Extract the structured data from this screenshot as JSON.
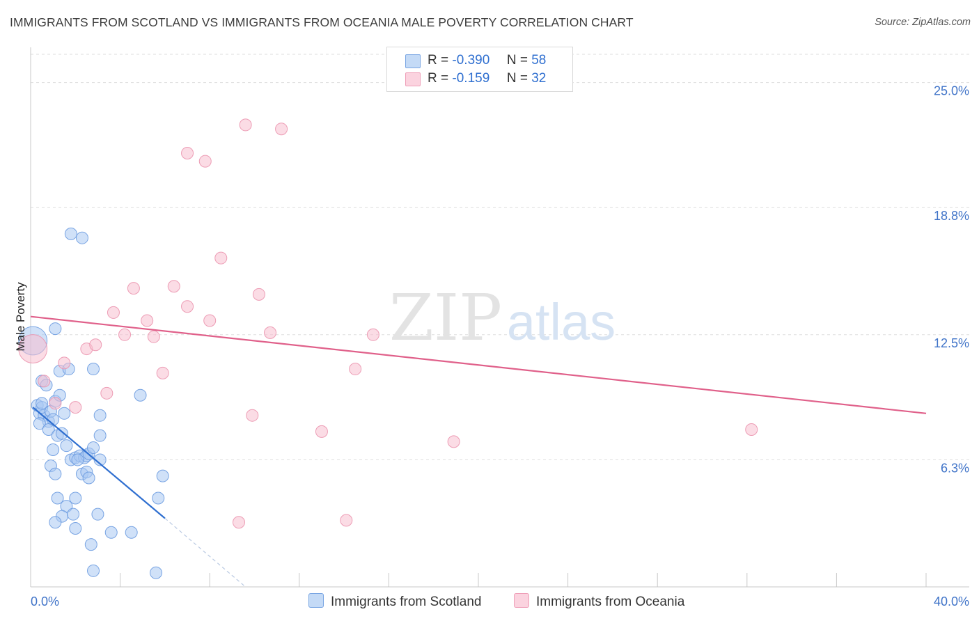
{
  "header": {
    "title": "IMMIGRANTS FROM SCOTLAND VS IMMIGRANTS FROM OCEANIA MALE POVERTY CORRELATION CHART",
    "source": "Source: ZipAtlas.com"
  },
  "watermark": {
    "zip": "ZIP",
    "atlas": "atlas"
  },
  "legend": {
    "scotland": {
      "r_label": "R =",
      "r_value": "-0.390",
      "n_label": "N =",
      "n_value": "58"
    },
    "oceania": {
      "r_label": "R =",
      "r_value": "-0.159",
      "n_label": "N =",
      "n_value": "32"
    }
  },
  "colors": {
    "scotland_fill": "#a9c8f2",
    "scotland_stroke": "#6c9be0",
    "scotland_line": "#2f6fd0",
    "oceania_fill": "#f7bfd0",
    "oceania_stroke": "#eb93ae",
    "oceania_line": "#e0608a",
    "axis_label": "#3f73c8",
    "grid": "#dedede"
  },
  "chart_data": {
    "type": "scatter",
    "title": "IMMIGRANTS FROM SCOTLAND VS IMMIGRANTS FROM OCEANIA MALE POVERTY CORRELATION CHART",
    "xlabel": "",
    "ylabel": "Male Poverty",
    "xlim": [
      0,
      40
    ],
    "ylim": [
      0,
      26.4
    ],
    "x_tick_labels": [
      "0.0%",
      "40.0%"
    ],
    "y_ticks": [
      6.3,
      12.5,
      18.8,
      25.0
    ],
    "y_tick_labels": [
      "6.3%",
      "12.5%",
      "18.8%",
      "25.0%"
    ],
    "legend_position": "top-center",
    "series": [
      {
        "name": "Immigrants from Scotland",
        "r": -0.39,
        "n": 58,
        "points": [
          [
            0.1,
            12.2,
            2.4
          ],
          [
            0.3,
            9.0,
            1
          ],
          [
            0.4,
            8.6,
            1
          ],
          [
            0.6,
            8.5,
            1
          ],
          [
            0.8,
            8.2,
            1
          ],
          [
            0.4,
            8.1,
            1
          ],
          [
            0.5,
            8.9,
            1
          ],
          [
            0.9,
            8.7,
            1
          ],
          [
            1.0,
            8.3,
            1
          ],
          [
            0.5,
            9.1,
            1
          ],
          [
            1.1,
            9.2,
            1
          ],
          [
            0.8,
            7.8,
            1
          ],
          [
            0.5,
            10.2,
            1
          ],
          [
            0.7,
            10.0,
            1
          ],
          [
            1.3,
            9.5,
            1
          ],
          [
            1.5,
            8.6,
            1
          ],
          [
            1.0,
            6.8,
            1
          ],
          [
            0.9,
            6.0,
            1
          ],
          [
            1.2,
            7.5,
            1
          ],
          [
            1.6,
            7.0,
            1
          ],
          [
            1.4,
            7.6,
            1
          ],
          [
            1.1,
            5.6,
            1
          ],
          [
            1.8,
            6.3,
            1
          ],
          [
            2.0,
            6.4,
            1
          ],
          [
            2.2,
            6.5,
            1
          ],
          [
            2.4,
            6.4,
            1
          ],
          [
            2.5,
            6.5,
            1
          ],
          [
            2.1,
            6.3,
            1
          ],
          [
            2.6,
            6.6,
            1
          ],
          [
            2.8,
            6.9,
            1
          ],
          [
            2.3,
            5.6,
            1
          ],
          [
            2.5,
            5.7,
            1
          ],
          [
            2.6,
            5.4,
            1
          ],
          [
            3.1,
            6.3,
            1
          ],
          [
            1.2,
            4.4,
            1
          ],
          [
            1.6,
            4.0,
            1
          ],
          [
            2.0,
            4.4,
            1
          ],
          [
            1.4,
            3.5,
            1
          ],
          [
            1.9,
            3.6,
            1
          ],
          [
            1.1,
            3.2,
            1
          ],
          [
            2.0,
            2.9,
            1
          ],
          [
            3.0,
            3.6,
            1
          ],
          [
            3.6,
            2.7,
            1
          ],
          [
            4.5,
            2.7,
            1
          ],
          [
            2.7,
            2.1,
            1
          ],
          [
            2.8,
            0.8,
            1
          ],
          [
            5.6,
            0.7,
            1
          ],
          [
            5.7,
            4.4,
            1
          ],
          [
            5.9,
            5.5,
            1
          ],
          [
            4.9,
            9.5,
            1
          ],
          [
            3.1,
            8.5,
            1
          ],
          [
            3.1,
            7.5,
            1
          ],
          [
            2.8,
            10.8,
            1
          ],
          [
            1.3,
            10.7,
            1
          ],
          [
            1.7,
            10.8,
            1
          ],
          [
            1.1,
            12.8,
            1
          ],
          [
            1.8,
            17.5,
            1
          ],
          [
            2.3,
            17.3,
            1
          ]
        ],
        "trend": {
          "x0": 0.1,
          "y0": 8.9,
          "x1": 6.0,
          "y1": 3.4,
          "dash_x1": 9.6,
          "dash_y1": 0.0
        }
      },
      {
        "name": "Immigrants from Oceania",
        "r": -0.159,
        "n": 32,
        "points": [
          [
            0.1,
            11.8,
            2.4
          ],
          [
            0.6,
            10.2,
            1
          ],
          [
            1.1,
            9.1,
            1
          ],
          [
            1.5,
            11.1,
            1
          ],
          [
            2.0,
            8.9,
            1
          ],
          [
            2.5,
            11.8,
            1
          ],
          [
            2.9,
            12.0,
            1
          ],
          [
            3.4,
            9.6,
            1
          ],
          [
            3.7,
            13.6,
            1
          ],
          [
            4.2,
            12.5,
            1
          ],
          [
            4.6,
            14.8,
            1
          ],
          [
            5.2,
            13.2,
            1
          ],
          [
            5.5,
            12.4,
            1
          ],
          [
            5.9,
            10.6,
            1
          ],
          [
            6.4,
            14.9,
            1
          ],
          [
            7.0,
            13.9,
            1
          ],
          [
            7.0,
            21.5,
            1
          ],
          [
            7.8,
            21.1,
            1
          ],
          [
            8.0,
            13.2,
            1
          ],
          [
            8.5,
            16.3,
            1
          ],
          [
            9.3,
            3.2,
            1
          ],
          [
            9.6,
            22.9,
            1
          ],
          [
            9.9,
            8.5,
            1
          ],
          [
            10.2,
            14.5,
            1
          ],
          [
            10.7,
            12.6,
            1
          ],
          [
            11.2,
            22.7,
            1
          ],
          [
            13.0,
            7.7,
            1
          ],
          [
            14.1,
            3.3,
            1
          ],
          [
            14.5,
            10.8,
            1
          ],
          [
            15.3,
            12.5,
            1
          ],
          [
            18.9,
            7.2,
            1
          ],
          [
            32.2,
            7.8,
            1
          ]
        ],
        "trend": {
          "x0": 0.0,
          "y0": 13.4,
          "x1": 40.0,
          "y1": 8.6
        }
      }
    ]
  },
  "bottom_legend": {
    "scotland_label": "Immigrants from Scotland",
    "oceania_label": "Immigrants from Oceania"
  }
}
